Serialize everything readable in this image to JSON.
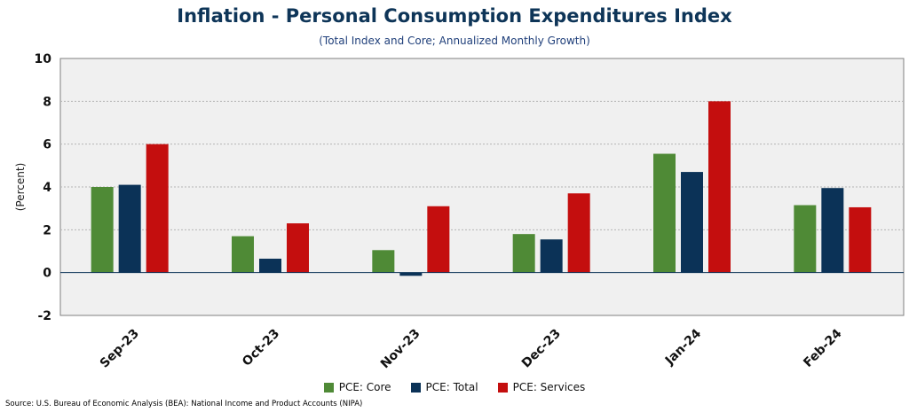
{
  "title": "Inflation - Personal Consumption Expenditures Index",
  "subtitle": "(Total Index and Core; Annualized Monthly Growth)",
  "source": "Source: U.S. Bureau of Economic Analysis (BEA): National Income and Product Accounts (NIPA)",
  "colors": {
    "core": "#4f8a36",
    "total": "#0b3257",
    "services": "#c40e0e",
    "plot_background": "#f0f0f0",
    "text": "#0e3558"
  },
  "chart_data": {
    "type": "bar",
    "title": "Inflation - Personal Consumption Expenditures Index",
    "subtitle": "(Total Index and Core; Annualized Monthly Growth)",
    "xlabel": "",
    "ylabel": "(Percent)",
    "ylim": [
      -2,
      10
    ],
    "yticks": [
      -2,
      0,
      2,
      4,
      6,
      8,
      10
    ],
    "grid": true,
    "legend_position": "bottom",
    "categories": [
      "Sep-23",
      "Oct-23",
      "Nov-23",
      "Dec-23",
      "Jan-24",
      "Feb-24"
    ],
    "series": [
      {
        "name": "PCE: Core",
        "color": "#4f8a36",
        "values": [
          4.0,
          1.7,
          1.05,
          1.8,
          5.55,
          3.15
        ]
      },
      {
        "name": "PCE: Total",
        "color": "#0b3257",
        "values": [
          4.1,
          0.65,
          -0.15,
          1.55,
          4.7,
          3.95
        ]
      },
      {
        "name": "PCE: Services",
        "color": "#c40e0e",
        "values": [
          6.0,
          2.3,
          3.1,
          3.7,
          8.0,
          3.05
        ]
      }
    ]
  }
}
